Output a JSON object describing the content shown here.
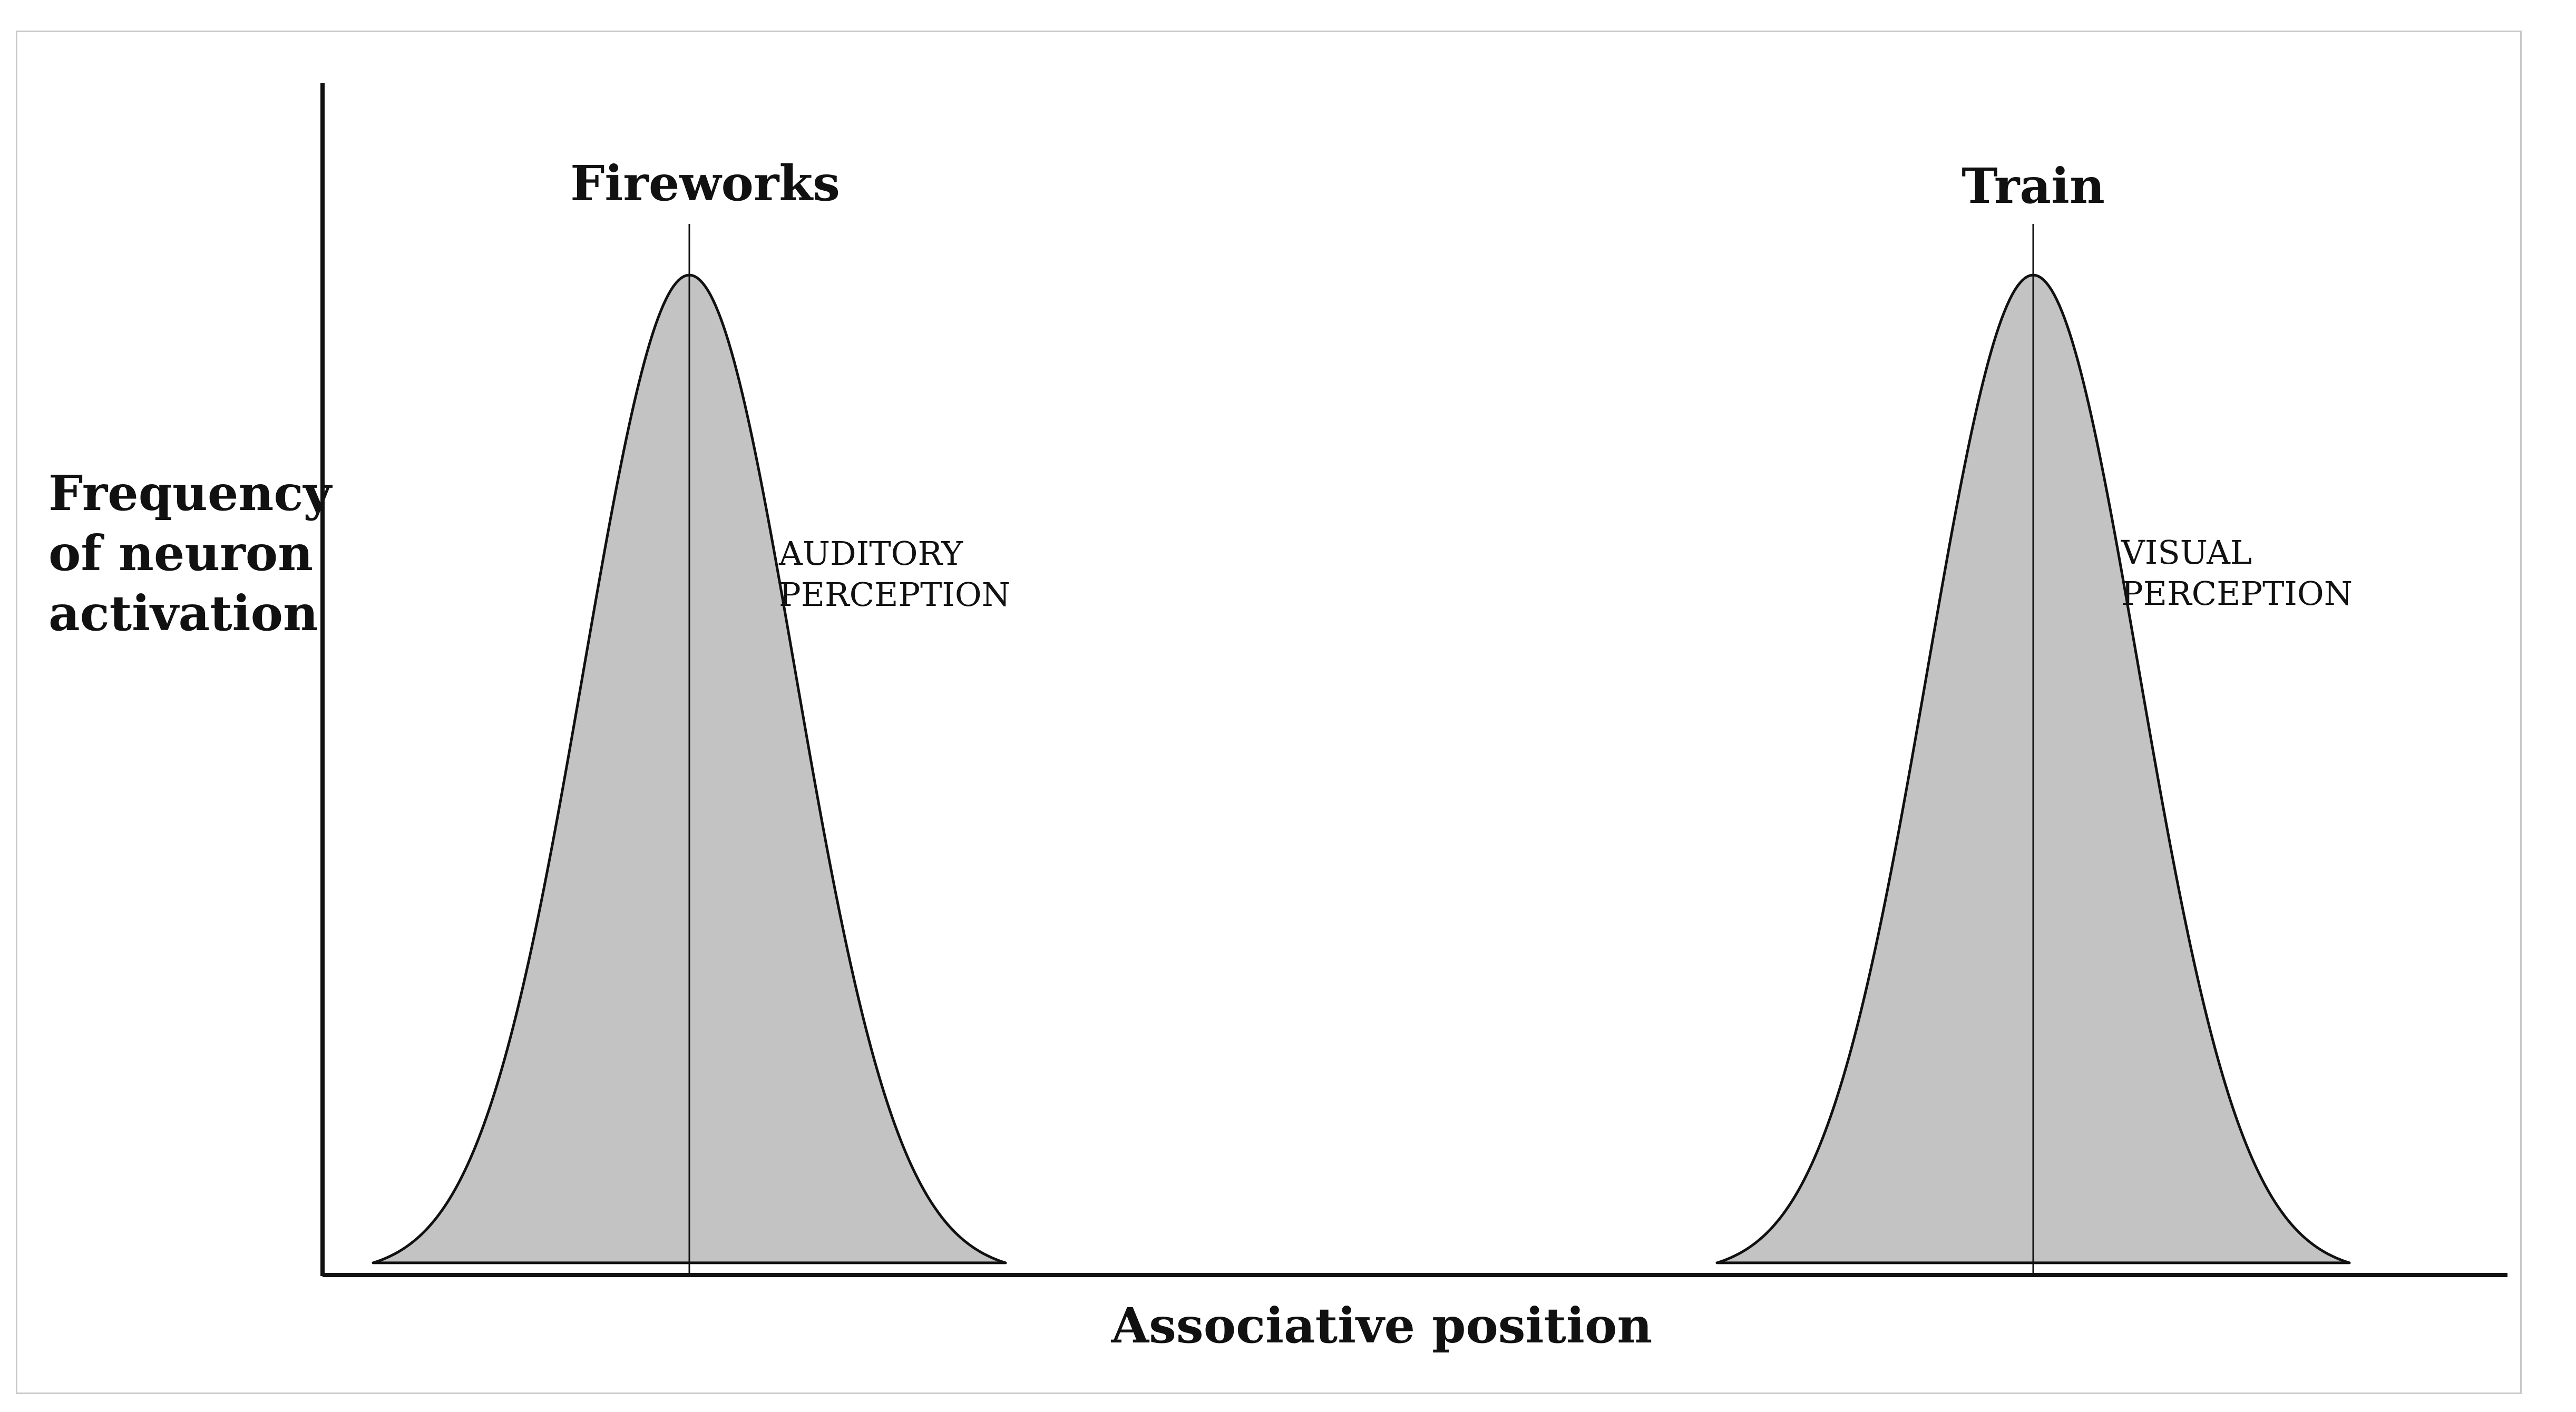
{
  "diagram": {
    "y_axis_label": [
      "Frequency",
      "of neuron",
      "activation"
    ],
    "x_axis_label": "Associative position",
    "peaks": [
      {
        "title": "Fireworks",
        "annotation": [
          "AUDITORY",
          "PERCEPTION"
        ]
      },
      {
        "title": "Train",
        "annotation": [
          "VISUAL",
          "PERCEPTION"
        ]
      }
    ],
    "colors": {
      "curve_fill": "#c3c3c3",
      "curve_stroke": "#111111",
      "axis": "#111111",
      "frame": "#c9c9c9"
    }
  }
}
